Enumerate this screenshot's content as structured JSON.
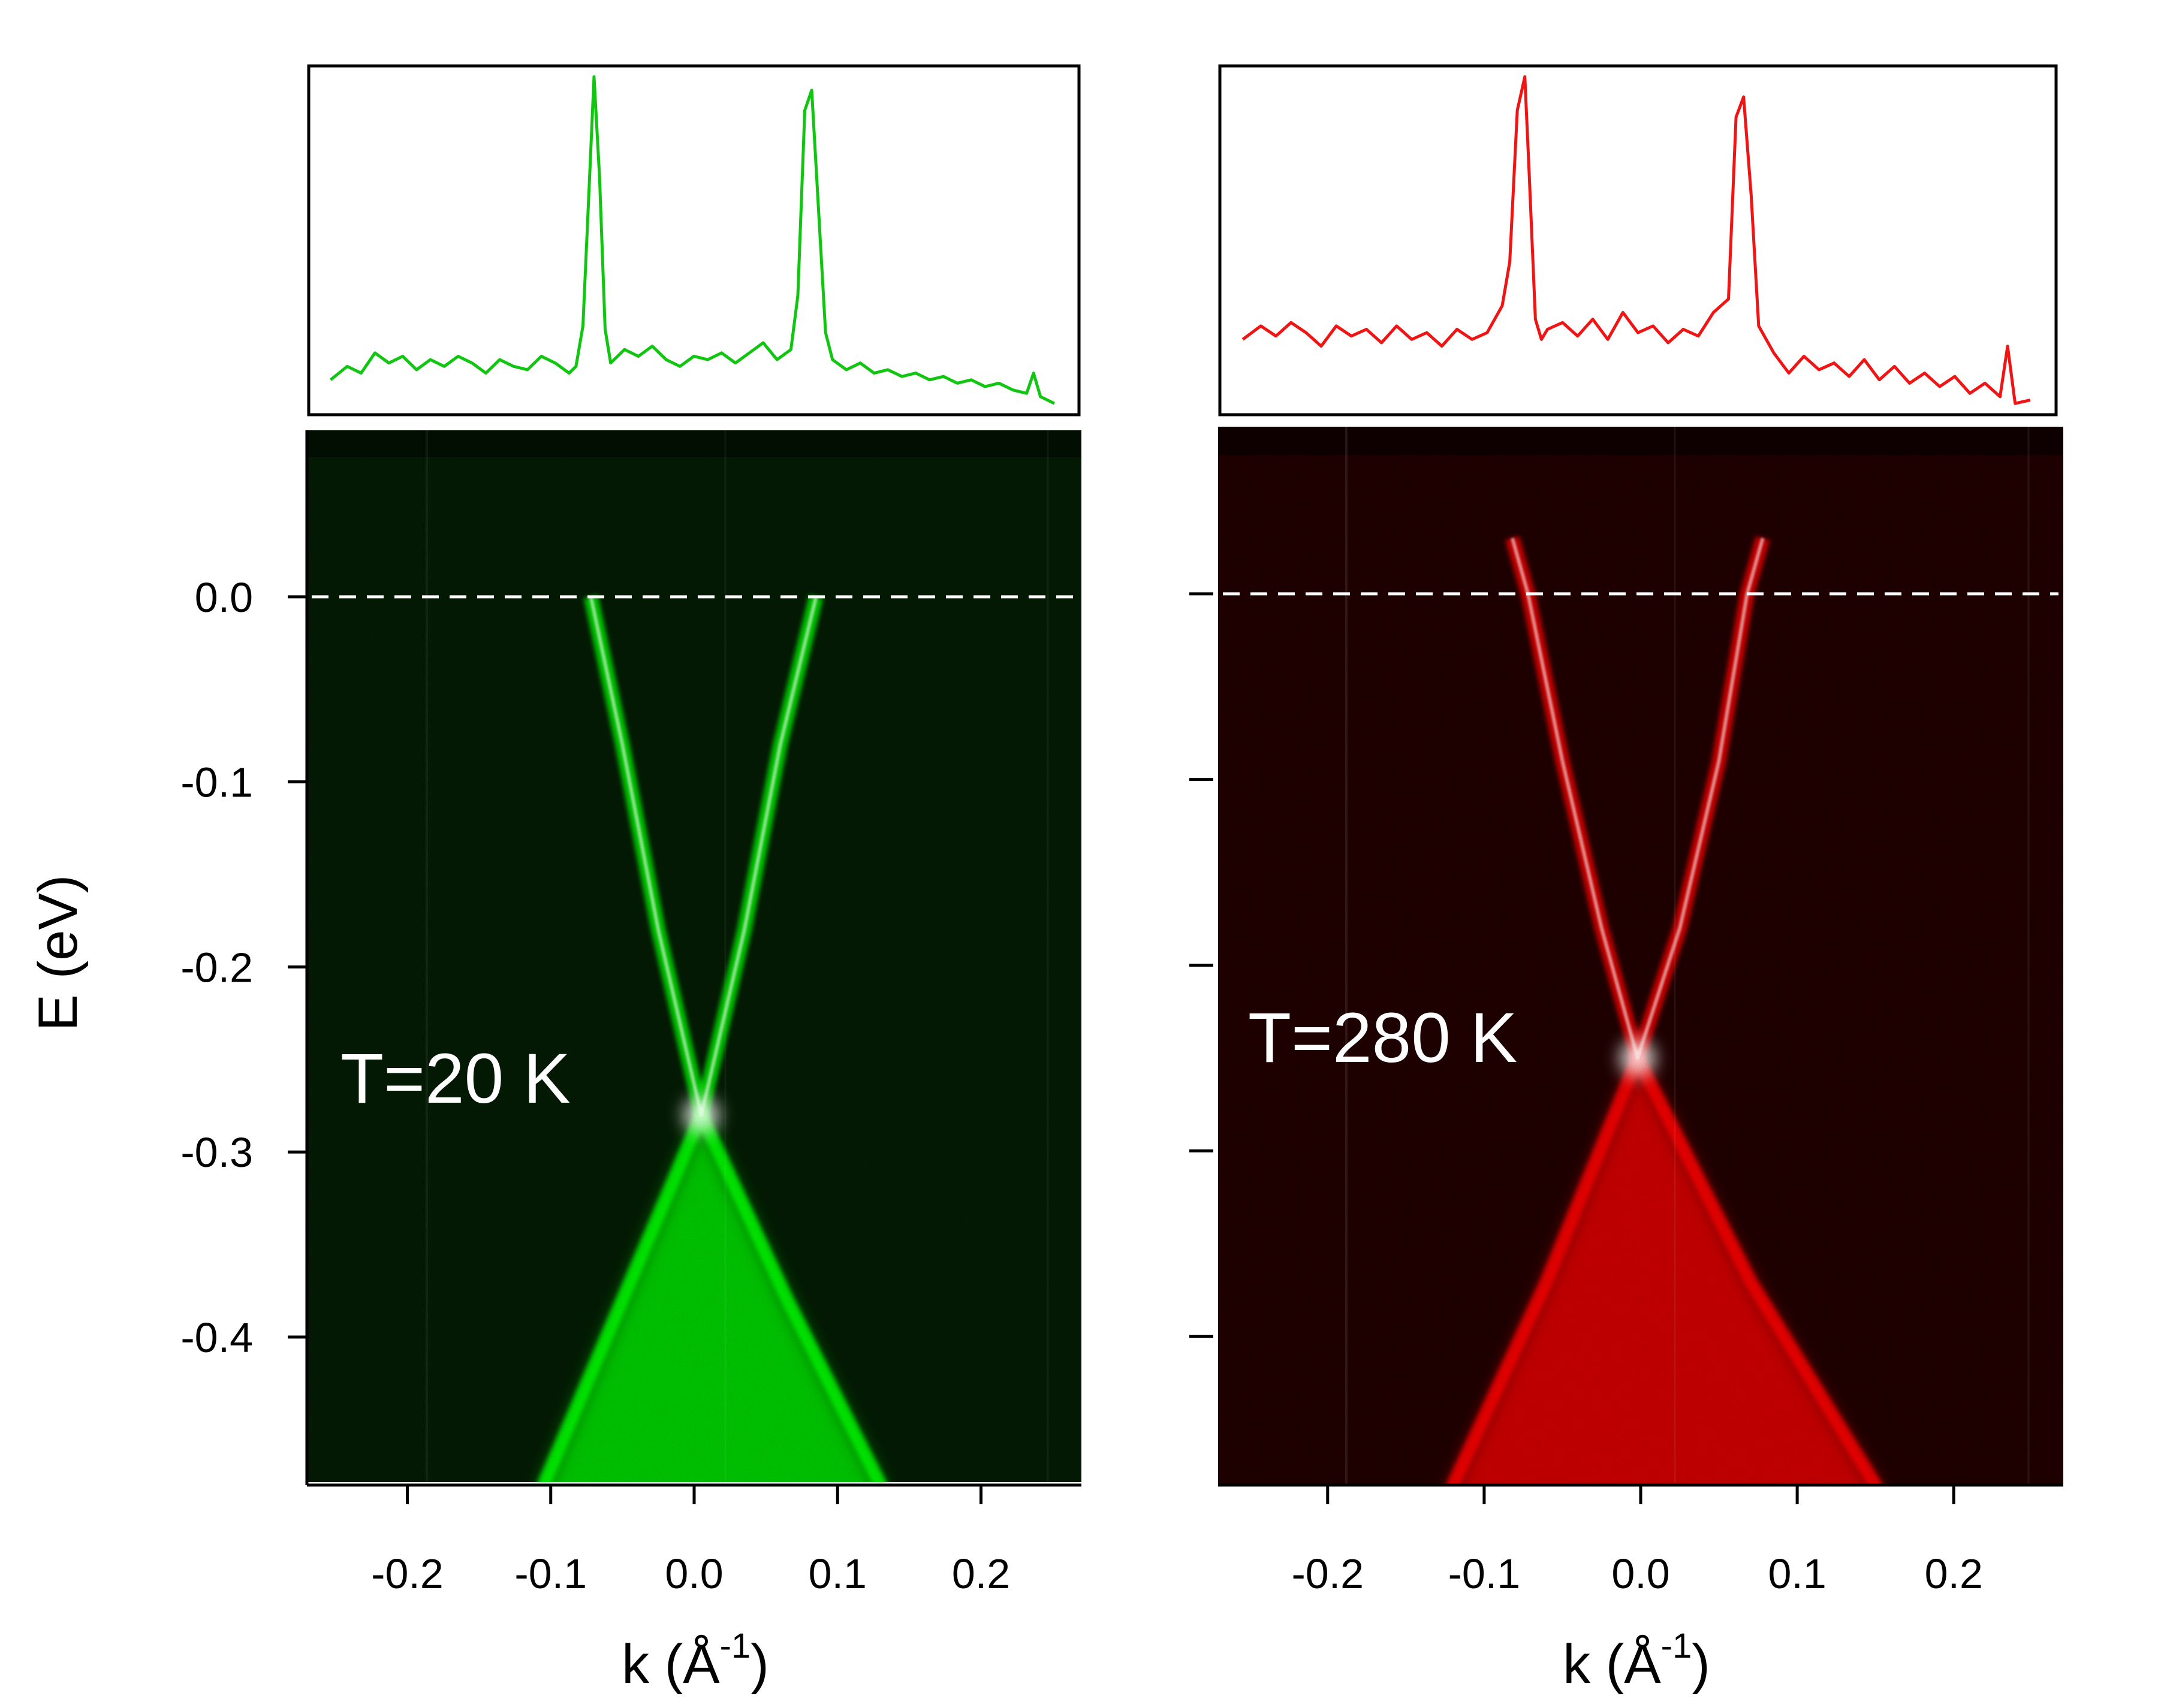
{
  "chart_data": [
    {
      "type": "heatmap",
      "panel": "left",
      "annotation": "T=20 K",
      "xlabel": "k (Å",
      "xlabel_sup": "-1",
      "xlabel_close": ")",
      "ylabel": "E (eV)",
      "xlim": [
        -0.27,
        0.27
      ],
      "ylim": [
        -0.48,
        0.09
      ],
      "xticks": [
        -0.2,
        -0.1,
        0.0,
        0.1,
        0.2
      ],
      "xtick_labels": [
        "-0.2",
        "-0.1",
        "0.0",
        "0.1",
        "0.2"
      ],
      "yticks": [
        0.0,
        -0.1,
        -0.2,
        -0.3,
        -0.4
      ],
      "ytick_labels": [
        "0.0",
        "-0.1",
        "-0.2",
        "-0.3",
        "-0.4"
      ],
      "fermi_level": 0.0,
      "dirac_point": {
        "k": 0.005,
        "E": -0.28
      },
      "bands": [
        {
          "name": "upper",
          "k": [
            -0.072,
            -0.05,
            -0.025,
            0.005,
            0.035,
            0.06,
            0.085
          ],
          "E": [
            0.0,
            -0.08,
            -0.18,
            -0.28,
            -0.18,
            -0.08,
            0.0
          ]
        },
        {
          "name": "lower",
          "k": [
            -0.105,
            -0.05,
            0.005,
            0.065,
            0.13
          ],
          "E": [
            -0.48,
            -0.38,
            -0.28,
            -0.38,
            -0.48
          ]
        }
      ],
      "colormap": [
        "#041a04",
        "#00ff00"
      ],
      "mdc_color": "#11c611",
      "mdc_k": [
        -0.262,
        -0.25,
        -0.24,
        -0.23,
        -0.22,
        -0.21,
        -0.2,
        -0.19,
        -0.18,
        -0.17,
        -0.16,
        -0.15,
        -0.14,
        -0.13,
        -0.12,
        -0.11,
        -0.1,
        -0.09,
        -0.085,
        -0.08,
        -0.075,
        -0.072,
        -0.068,
        -0.064,
        -0.06,
        -0.05,
        -0.04,
        -0.03,
        -0.02,
        -0.01,
        0.0,
        0.01,
        0.02,
        0.03,
        0.04,
        0.05,
        0.06,
        0.07,
        0.075,
        0.08,
        0.085,
        0.09,
        0.095,
        0.1,
        0.11,
        0.12,
        0.13,
        0.14,
        0.15,
        0.16,
        0.17,
        0.18,
        0.19,
        0.2,
        0.21,
        0.22,
        0.23,
        0.24,
        0.245,
        0.25,
        0.26
      ],
      "mdc_I": [
        0.1,
        0.14,
        0.12,
        0.18,
        0.15,
        0.17,
        0.13,
        0.16,
        0.14,
        0.17,
        0.15,
        0.12,
        0.16,
        0.14,
        0.13,
        0.17,
        0.15,
        0.12,
        0.14,
        0.26,
        0.72,
        1.0,
        0.7,
        0.25,
        0.15,
        0.19,
        0.17,
        0.2,
        0.16,
        0.14,
        0.17,
        0.16,
        0.18,
        0.15,
        0.18,
        0.21,
        0.16,
        0.19,
        0.35,
        0.9,
        0.96,
        0.6,
        0.24,
        0.16,
        0.13,
        0.15,
        0.12,
        0.13,
        0.11,
        0.12,
        0.1,
        0.11,
        0.09,
        0.1,
        0.08,
        0.09,
        0.07,
        0.06,
        0.12,
        0.05,
        0.03
      ]
    },
    {
      "type": "heatmap",
      "panel": "right",
      "annotation": "T=280 K",
      "xlabel": "k (Å",
      "xlabel_sup": "-1",
      "xlabel_close": ")",
      "xlim": [
        -0.27,
        0.27
      ],
      "ylim": [
        -0.48,
        0.09
      ],
      "xticks": [
        -0.2,
        -0.1,
        0.0,
        0.1,
        0.2
      ],
      "xtick_labels": [
        "-0.2",
        "-0.1",
        "0.0",
        "0.1",
        "0.2"
      ],
      "yticks": [
        0.0,
        -0.1,
        -0.2,
        -0.3,
        -0.4
      ],
      "fermi_level": 0.0,
      "dirac_point": {
        "k": -0.002,
        "E": -0.25
      },
      "bands": [
        {
          "name": "upper",
          "k": [
            -0.082,
            -0.072,
            -0.05,
            -0.025,
            -0.002,
            0.025,
            0.05,
            0.068,
            0.078
          ],
          "E": [
            0.03,
            0.0,
            -0.09,
            -0.18,
            -0.25,
            -0.18,
            -0.09,
            0.0,
            0.03
          ]
        },
        {
          "name": "lower",
          "k": [
            -0.12,
            -0.06,
            -0.002,
            0.07,
            0.15
          ],
          "E": [
            -0.48,
            -0.37,
            -0.25,
            -0.37,
            -0.48
          ]
        }
      ],
      "colormap": [
        "#1e0000",
        "#ff0000"
      ],
      "mdc_color": "#f01414",
      "mdc_k": [
        -0.262,
        -0.25,
        -0.24,
        -0.23,
        -0.22,
        -0.21,
        -0.2,
        -0.19,
        -0.18,
        -0.17,
        -0.16,
        -0.15,
        -0.14,
        -0.13,
        -0.12,
        -0.11,
        -0.1,
        -0.09,
        -0.085,
        -0.08,
        -0.075,
        -0.072,
        -0.068,
        -0.064,
        -0.06,
        -0.05,
        -0.04,
        -0.03,
        -0.02,
        -0.01,
        0.0,
        0.01,
        0.02,
        0.03,
        0.04,
        0.05,
        0.06,
        0.065,
        0.07,
        0.075,
        0.08,
        0.09,
        0.1,
        0.11,
        0.12,
        0.13,
        0.14,
        0.15,
        0.16,
        0.17,
        0.18,
        0.19,
        0.2,
        0.21,
        0.22,
        0.23,
        0.24,
        0.245,
        0.25,
        0.26
      ],
      "mdc_I": [
        0.22,
        0.26,
        0.23,
        0.27,
        0.24,
        0.2,
        0.26,
        0.23,
        0.25,
        0.21,
        0.26,
        0.22,
        0.24,
        0.2,
        0.25,
        0.22,
        0.24,
        0.32,
        0.45,
        0.9,
        1.0,
        0.7,
        0.28,
        0.22,
        0.25,
        0.27,
        0.23,
        0.28,
        0.22,
        0.3,
        0.24,
        0.26,
        0.21,
        0.25,
        0.23,
        0.3,
        0.34,
        0.88,
        0.94,
        0.65,
        0.26,
        0.18,
        0.12,
        0.17,
        0.13,
        0.15,
        0.11,
        0.16,
        0.1,
        0.14,
        0.09,
        0.12,
        0.08,
        0.11,
        0.06,
        0.09,
        0.05,
        0.2,
        0.03,
        0.04
      ]
    }
  ]
}
